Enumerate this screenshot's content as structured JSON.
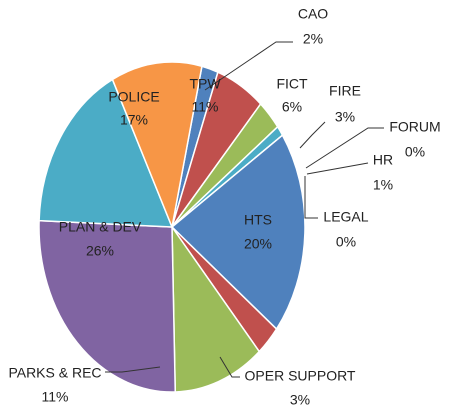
{
  "chart_data": {
    "type": "pie",
    "categories": [
      "CAO",
      "FICT",
      "FIRE",
      "FORUM",
      "HR",
      "LEGAL",
      "HTS",
      "OPER SUPPORT",
      "PARKS & REC",
      "PLAN & DEV",
      "POLICE",
      "TPW"
    ],
    "values": [
      2,
      6,
      3,
      0,
      1,
      0,
      20,
      3,
      11,
      26,
      17,
      11
    ],
    "value_labels": [
      "2%",
      "6%",
      "3%",
      "0%",
      "1%",
      "0%",
      "20%",
      "3%",
      "11%",
      "26%",
      "17%",
      "11%"
    ],
    "colors": [
      "#4f81bd",
      "#c0504d",
      "#9bbb59",
      "#8064a2",
      "#4bacc6",
      "#f79646",
      "#4f81bd",
      "#c0504d",
      "#9bbb59",
      "#8064a2",
      "#4bacc6",
      "#f79646"
    ]
  }
}
